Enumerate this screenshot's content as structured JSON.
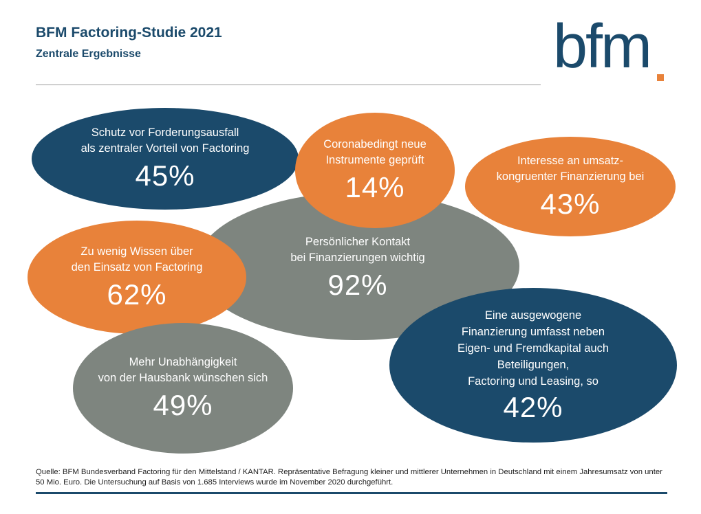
{
  "header": {
    "title": "BFM Factoring-Studie 2021",
    "subtitle": "Zentrale Ergebnisse",
    "logo_text": "bfm"
  },
  "colors": {
    "navy": "#1b4a6b",
    "orange": "#e8823a",
    "gray": "#7e857f"
  },
  "bubbles": {
    "schutz": {
      "text": "Schutz vor Forderungsausfall\nals zentraler Vorteil von Factoring",
      "value": "45%",
      "color": "navy"
    },
    "corona": {
      "text": "Coronabedingt neue\nInstrumente geprüft",
      "value": "14%",
      "color": "orange"
    },
    "umsatz": {
      "text": "Interesse an umsatz-\nkongruenter Finanzierung bei",
      "value": "43%",
      "color": "orange"
    },
    "kontakt": {
      "text": "Persönlicher Kontakt\nbei Finanzierungen wichtig",
      "value": "92%",
      "color": "gray"
    },
    "wissen": {
      "text": "Zu wenig Wissen über\nden Einsatz von Factoring",
      "value": "62%",
      "color": "orange"
    },
    "ausgewogen": {
      "text": "Eine ausgewogene\nFinanzierung umfasst neben\nEigen- und Fremdkapital auch\nBeteiligungen,\nFactoring und Leasing, so",
      "value": "42%",
      "color": "navy"
    },
    "unabhaengig": {
      "text": "Mehr Unabhängigkeit\nvon der Hausbank wünschen sich",
      "value": "49%",
      "color": "gray"
    }
  },
  "footer": {
    "source": "Quelle: BFM Bundesverband Factoring für den Mittelstand / KANTAR. Repräsentative Befragung kleiner und mittlerer Unternehmen in Deutschland mit einem Jahresumsatz von unter 50 Mio. Euro. Die Untersuchung auf Basis von 1.685 Interviews wurde im November 2020 durchgeführt."
  }
}
